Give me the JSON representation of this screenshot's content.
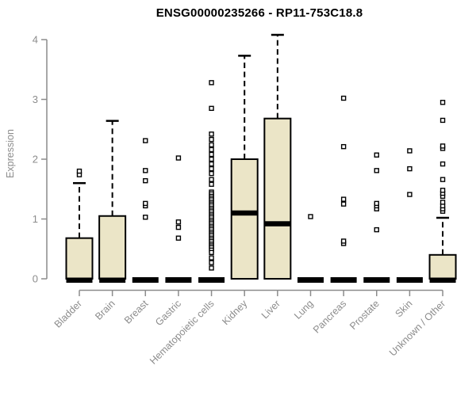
{
  "chart_data": {
    "type": "boxplot",
    "title": "ENSG00000235266 - RP11-753C18.8",
    "ylabel": "Expression",
    "ylim": [
      0,
      4.3
    ],
    "yticks": [
      0,
      1,
      2,
      3,
      4
    ],
    "grid": false,
    "legend": false,
    "colors": {
      "box_fill": "#ebe5c7",
      "box_stroke": "#000000",
      "median": "#000000",
      "whisker": "#000000",
      "outlier_stroke": "#000000",
      "axis": "#8c8c8c",
      "tick_label": "#8c8c8c",
      "title": "#000000"
    },
    "categories": [
      "Bladder",
      "Brain",
      "Breast",
      "Gastric",
      "Hematopoietic cells",
      "Kidney",
      "Liver",
      "Lung",
      "Pancreas",
      "Prostate",
      "Skin",
      "Unknown / Other"
    ],
    "boxes": [
      {
        "label": "Bladder",
        "q1": 0,
        "median": 0,
        "q3": 0.68,
        "whisker_low": 0,
        "whisker_high": 1.6,
        "outliers": [
          1.74,
          1.8
        ]
      },
      {
        "label": "Brain",
        "q1": 0,
        "median": 0,
        "q3": 1.05,
        "whisker_low": 0,
        "whisker_high": 2.64,
        "outliers": []
      },
      {
        "label": "Breast",
        "q1": 0,
        "median": 0,
        "q3": 0,
        "whisker_low": 0,
        "whisker_high": 0,
        "outliers": [
          1.03,
          1.22,
          1.26,
          1.64,
          1.81,
          2.31
        ]
      },
      {
        "label": "Gastric",
        "q1": 0,
        "median": 0,
        "q3": 0,
        "whisker_low": 0,
        "whisker_high": 0,
        "outliers": [
          0.68,
          0.86,
          0.95,
          2.02
        ]
      },
      {
        "label": "Hematopoietic cells",
        "q1": 0,
        "median": 0,
        "q3": 0,
        "whisker_low": 0,
        "whisker_high": 0,
        "outliers": [
          3.28,
          2.85,
          2.42,
          2.33,
          2.24,
          2.16,
          2.08,
          2.0,
          1.92,
          1.84,
          1.76,
          1.66,
          1.58,
          1.45,
          1.42,
          1.38,
          1.35,
          1.32,
          1.28,
          1.25,
          1.22,
          1.18,
          1.15,
          1.12,
          1.08,
          1.05,
          1.02,
          0.98,
          0.95,
          0.92,
          0.88,
          0.85,
          0.82,
          0.78,
          0.75,
          0.72,
          0.68,
          0.65,
          0.62,
          0.58,
          0.55,
          0.52,
          0.48,
          0.44,
          0.35,
          0.27,
          0.18
        ]
      },
      {
        "label": "Kidney",
        "q1": 0,
        "median": 1.1,
        "q3": 2.0,
        "whisker_low": 0,
        "whisker_high": 3.73,
        "outliers": []
      },
      {
        "label": "Liver",
        "q1": 0,
        "median": 0.92,
        "q3": 2.68,
        "whisker_low": 0,
        "whisker_high": 4.08,
        "outliers": []
      },
      {
        "label": "Lung",
        "q1": 0,
        "median": 0,
        "q3": 0,
        "whisker_low": 0,
        "whisker_high": 0,
        "outliers": [
          1.04
        ]
      },
      {
        "label": "Pancreas",
        "q1": 0,
        "median": 0,
        "q3": 0,
        "whisker_low": 0,
        "whisker_high": 0,
        "outliers": [
          0.59,
          0.63,
          1.25,
          1.33,
          2.21,
          3.02
        ]
      },
      {
        "label": "Prostate",
        "q1": 0,
        "median": 0,
        "q3": 0,
        "whisker_low": 0,
        "whisker_high": 0,
        "outliers": [
          0.82,
          1.17,
          1.22,
          1.26,
          1.81,
          2.07
        ]
      },
      {
        "label": "Skin",
        "q1": 0,
        "median": 0,
        "q3": 0,
        "whisker_low": 0,
        "whisker_high": 0,
        "outliers": [
          1.41,
          1.84,
          2.14
        ]
      },
      {
        "label": "Unknown / Other",
        "q1": 0,
        "median": 0,
        "q3": 0.4,
        "whisker_low": 0,
        "whisker_high": 1.02,
        "outliers": [
          1.13,
          1.17,
          1.22,
          1.28,
          1.38,
          1.43,
          1.48,
          1.66,
          1.92,
          2.18,
          2.22,
          2.65,
          2.95
        ]
      }
    ]
  }
}
